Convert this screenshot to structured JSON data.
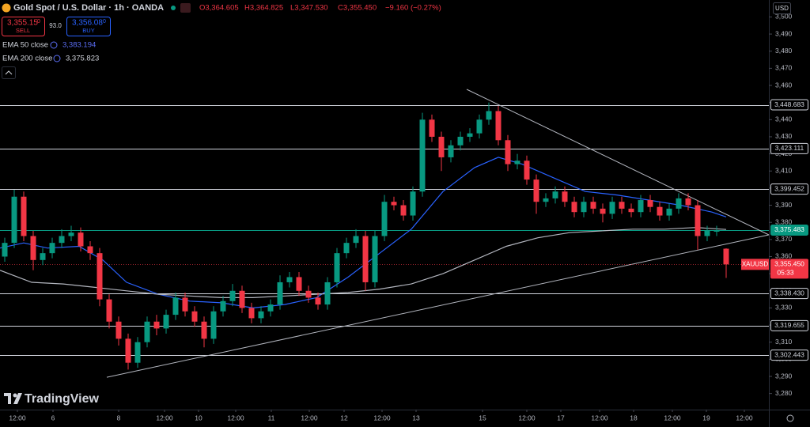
{
  "header": {
    "symbol": "Gold Spot / U.S. Dollar · 1h · OANDA",
    "open": "O3,364.605",
    "high": "H3,364.825",
    "low": "L3,347.530",
    "close": "C3,355.450",
    "change": "−9.160 (−0.27%)"
  },
  "trade": {
    "sell_price": "3,355.15",
    "sell_pip": "0",
    "sell": "SELL",
    "spread": "93.0",
    "buy_price": "3,356.08",
    "buy_pip": "0",
    "buy": "BUY"
  },
  "currency": "USD",
  "brand": "TradingView",
  "chart_data": {
    "type": "candlestick",
    "up_color": "#089981",
    "down_color": "#f23645",
    "x": [
      1.5,
      4.5,
      7.5,
      10.5,
      13.5,
      16.5,
      19.5,
      22.5,
      25.5,
      28.5,
      31.5,
      34.5,
      37.5,
      40.5,
      43.5,
      46.5,
      49.5,
      52.5,
      55.5,
      58.5,
      61.5,
      64.5,
      67.5,
      70.5,
      73.5,
      76.5,
      79.5,
      82.5,
      85.5,
      88.5,
      91.5,
      94.5,
      97.5,
      100.5,
      103.5,
      106.5,
      109.5,
      112.5,
      115.5,
      118.5,
      121.5,
      124.5,
      127.5,
      130.5,
      133.5,
      136.5,
      139.5,
      142.5,
      145.5,
      148.5,
      151.5,
      154.5,
      157.5,
      160.5,
      163.5,
      166.5,
      169.5,
      172.5,
      175.5,
      178.5,
      181.5,
      184.5,
      187.5,
      190.5,
      193.5,
      196.5,
      199.5,
      202.5,
      205.5,
      208.5,
      211.5,
      214.5,
      217.5,
      220.5,
      223.5,
      226.5,
      229.5
    ],
    "open": [
      3360,
      3368,
      3395,
      3372,
      3358,
      3362,
      3368,
      3372,
      3374,
      3366,
      3362,
      3335,
      3322,
      3312,
      3298,
      3310,
      3322,
      3318,
      3326,
      3336,
      3328,
      3322,
      3312,
      3328,
      3334,
      3340,
      3330,
      3324,
      3328,
      3332,
      3345,
      3348,
      3340,
      3336,
      3332,
      3345,
      3362,
      3368,
      3372,
      3345,
      3372,
      3392,
      3390,
      3384,
      3398,
      3440,
      3430,
      3418,
      3425,
      3430,
      3432,
      3440,
      3445,
      3428,
      3414,
      3416,
      3405,
      3392,
      3394,
      3398,
      3392,
      3386,
      3392,
      3388,
      3385,
      3392,
      3388,
      3386,
      3393,
      3389,
      3384,
      3388,
      3394,
      3390,
      3372,
      3375,
      3364.605
    ],
    "high": [
      3371,
      3399,
      3398,
      3375,
      3365,
      3371,
      3376,
      3378,
      3377,
      3369,
      3365,
      3338,
      3325,
      3315,
      3313,
      3325,
      3326,
      3329,
      3339,
      3339,
      3331,
      3325,
      3331,
      3337,
      3344,
      3343,
      3333,
      3331,
      3335,
      3349,
      3351,
      3351,
      3343,
      3339,
      3348,
      3365,
      3371,
      3376,
      3375,
      3375,
      3396,
      3395,
      3393,
      3401,
      3444,
      3443,
      3433,
      3428,
      3433,
      3435,
      3443,
      3450,
      3448,
      3431,
      3420,
      3419,
      3408,
      3397,
      3401,
      3401,
      3395,
      3395,
      3395,
      3391,
      3395,
      3395,
      3391,
      3396,
      3396,
      3392,
      3391,
      3397,
      3397,
      3393,
      3378,
      3378,
      3364.825
    ],
    "low": [
      3357,
      3365,
      3369,
      3352,
      3355,
      3359,
      3365,
      3369,
      3363,
      3358,
      3331,
      3318,
      3308,
      3294,
      3295,
      3307,
      3314,
      3315,
      3323,
      3325,
      3319,
      3307,
      3309,
      3325,
      3331,
      3327,
      3321,
      3321,
      3325,
      3329,
      3342,
      3337,
      3333,
      3329,
      3329,
      3342,
      3359,
      3365,
      3340,
      3342,
      3369,
      3387,
      3381,
      3381,
      3395,
      3427,
      3410,
      3415,
      3422,
      3427,
      3429,
      3437,
      3425,
      3410,
      3411,
      3402,
      3385,
      3389,
      3391,
      3389,
      3383,
      3383,
      3385,
      3380,
      3382,
      3385,
      3383,
      3383,
      3386,
      3381,
      3381,
      3385,
      3387,
      3364,
      3369,
      3372,
      3347.53
    ],
    "close": [
      3368,
      3395,
      3372,
      3358,
      3362,
      3368,
      3372,
      3374,
      3366,
      3362,
      3335,
      3322,
      3312,
      3298,
      3310,
      3322,
      3318,
      3326,
      3336,
      3328,
      3322,
      3312,
      3328,
      3334,
      3340,
      3330,
      3324,
      3328,
      3332,
      3345,
      3348,
      3340,
      3336,
      3332,
      3345,
      3362,
      3368,
      3372,
      3345,
      3372,
      3392,
      3390,
      3384,
      3398,
      3440,
      3430,
      3418,
      3425,
      3430,
      3432,
      3440,
      3445,
      3428,
      3414,
      3416,
      3405,
      3392,
      3394,
      3398,
      3392,
      3386,
      3392,
      3388,
      3385,
      3392,
      3388,
      3386,
      3393,
      3389,
      3384,
      3388,
      3394,
      3390,
      3372,
      3375,
      3375,
      3355.45
    ],
    "series": [
      {
        "name": "EMA 50 close",
        "color": "#2962ff",
        "last_label": "3,383.194",
        "x": [
          0,
          7.5,
          15,
          25,
          32.5,
          40,
          50,
          60,
          70,
          80,
          90,
          100,
          110,
          120,
          130,
          140,
          150,
          157.5,
          165,
          175,
          185,
          195,
          205,
          215,
          225,
          229.5
        ],
        "values": [
          3365,
          3368,
          3365,
          3366,
          3358,
          3345,
          3338,
          3334,
          3333,
          3330,
          3332,
          3336,
          3348,
          3362,
          3376,
          3398,
          3412,
          3418,
          3414,
          3406,
          3398,
          3396,
          3393,
          3390,
          3386,
          3383.194
        ]
      },
      {
        "name": "EMA 200 close",
        "color": "#b2b5be",
        "last_label": "3,375.823",
        "x": [
          0,
          10,
          20,
          30,
          40,
          50,
          60,
          70,
          80,
          90,
          100,
          110,
          120,
          130,
          140,
          150,
          160,
          170,
          180,
          190,
          200,
          210,
          220,
          229.5
        ],
        "values": [
          3352,
          3345,
          3344,
          3342,
          3340,
          3338,
          3337,
          3336,
          3336,
          3337,
          3338,
          3339,
          3341,
          3344,
          3350,
          3358,
          3366,
          3371,
          3374,
          3375,
          3376,
          3376,
          3377,
          3375.823
        ]
      }
    ],
    "trendlines": [
      {
        "x": [
          147.5,
          243
        ],
        "values": [
          3457.7,
          3372.7
        ]
      },
      {
        "x": [
          33.75,
          243
        ],
        "values": [
          3289.5,
          3372.7
        ]
      }
    ],
    "levels": [
      {
        "value": 3448.683,
        "label": "3,448.683",
        "color": "#d1d4dc"
      },
      {
        "value": 3423.111,
        "label": "3,423.111",
        "color": "#d1d4dc"
      },
      {
        "value": 3399.452,
        "label": "3,399.452",
        "color": "#d1d4dc"
      },
      {
        "value": 3375.483,
        "label": "3,375.483",
        "color": "#089981"
      },
      {
        "value": 3338.43,
        "label": "3,338.430",
        "color": "#d1d4dc"
      },
      {
        "value": 3319.655,
        "label": "3,319.655",
        "color": "#d1d4dc"
      },
      {
        "value": 3302.443,
        "label": "3,302.443",
        "color": "#d1d4dc"
      }
    ],
    "price_label": {
      "symbol": "XAUUSD",
      "label": "3,355.450",
      "countdown": "05:33"
    },
    "xlim": [
      0,
      243
    ],
    "xticks": [
      {
        "value": 5.5,
        "label": "12:00"
      },
      {
        "value": 16.75,
        "label": "6"
      },
      {
        "value": 37.5,
        "label": "8"
      },
      {
        "value": 52,
        "label": "12:00"
      },
      {
        "value": 62.75,
        "label": "10"
      },
      {
        "value": 74.5,
        "label": "12:00"
      },
      {
        "value": 85.75,
        "label": "11"
      },
      {
        "value": 97.75,
        "label": "12:00"
      },
      {
        "value": 108.75,
        "label": "12"
      },
      {
        "value": 120.75,
        "label": "12:00"
      },
      {
        "value": 131.5,
        "label": "13"
      },
      {
        "value": 152.5,
        "label": "15"
      },
      {
        "value": 166.5,
        "label": "12:00"
      },
      {
        "value": 177.25,
        "label": "17"
      },
      {
        "value": 189.5,
        "label": "12:00"
      },
      {
        "value": 200.25,
        "label": "18"
      },
      {
        "value": 212.5,
        "label": "12:00"
      },
      {
        "value": 223.25,
        "label": "19"
      },
      {
        "value": 235.25,
        "label": "12:00"
      }
    ],
    "ylim": [
      3270.6,
      3509.9
    ],
    "yticks": [
      {
        "value": 3280,
        "label": "3,280"
      },
      {
        "value": 3290,
        "label": "3,290"
      },
      {
        "value": 3300,
        "label": "3,300"
      },
      {
        "value": 3310,
        "label": "3,310"
      },
      {
        "value": 3320,
        "label": "3,320"
      },
      {
        "value": 3330,
        "label": "3,330"
      },
      {
        "value": 3340,
        "label": "3,340"
      },
      {
        "value": 3350,
        "label": "3,350"
      },
      {
        "value": 3360,
        "label": "3,360"
      },
      {
        "value": 3370,
        "label": "3,370"
      },
      {
        "value": 3380,
        "label": "3,380"
      },
      {
        "value": 3390,
        "label": "3,390"
      },
      {
        "value": 3400,
        "label": "3,400"
      },
      {
        "value": 3410,
        "label": "3,410"
      },
      {
        "value": 3420,
        "label": "3,420"
      },
      {
        "value": 3430,
        "label": "3,430"
      },
      {
        "value": 3440,
        "label": "3,440"
      },
      {
        "value": 3450,
        "label": "3,450"
      },
      {
        "value": 3460,
        "label": "3,460"
      },
      {
        "value": 3470,
        "label": "3,470"
      },
      {
        "value": 3480,
        "label": "3,480"
      },
      {
        "value": 3490,
        "label": "3,490"
      },
      {
        "value": 3500,
        "label": "3,500"
      }
    ]
  }
}
